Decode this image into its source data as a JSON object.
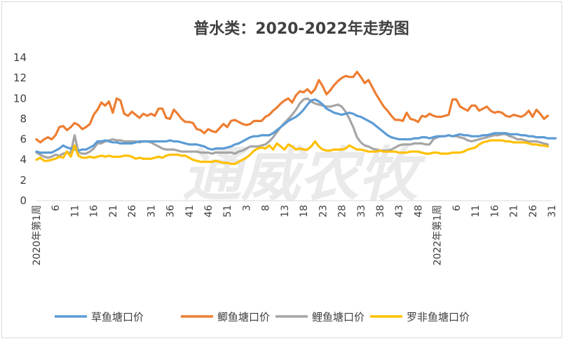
{
  "chart_data": {
    "type": "line",
    "title": "普水类：2020-2022年走势图",
    "watermark": "通威农牧",
    "x_tick_labels": [
      "2020年第1周",
      "6",
      "11",
      "16",
      "21",
      "26",
      "31",
      "36",
      "41",
      "46",
      "51",
      "3",
      "8",
      "13",
      "18",
      "23",
      "28",
      "33",
      "38",
      "43",
      "48",
      "2022年第1周",
      "6",
      "11",
      "16",
      "21",
      "26",
      "31"
    ],
    "ylim": [
      0,
      14
    ],
    "yticks": [
      0,
      2,
      4,
      6,
      8,
      10,
      12,
      14
    ],
    "grid": false,
    "legend_position": "bottom",
    "series": [
      {
        "name": "草鱼塘口价",
        "color": "#5B9BD5",
        "values": [
          4.8,
          4.7,
          4.7,
          4.7,
          4.7,
          4.9,
          5.1,
          5.4,
          5.2,
          5.1,
          5.0,
          4.9,
          5.0,
          5.0,
          5.2,
          5.4,
          5.8,
          5.8,
          5.9,
          5.8,
          5.7,
          5.7,
          5.6,
          5.6,
          5.6,
          5.6,
          5.7,
          5.8,
          5.8,
          5.8,
          5.8,
          5.8,
          5.8,
          5.8,
          5.8,
          5.9,
          5.8,
          5.8,
          5.7,
          5.6,
          5.5,
          5.5,
          5.5,
          5.4,
          5.3,
          5.1,
          5.0,
          5.1,
          5.1,
          5.1,
          5.2,
          5.3,
          5.5,
          5.6,
          5.8,
          6.0,
          6.2,
          6.3,
          6.3,
          6.4,
          6.4,
          6.4,
          6.6,
          6.9,
          7.2,
          7.5,
          7.8,
          8.0,
          8.2,
          8.5,
          8.9,
          9.4,
          9.8,
          9.9,
          9.7,
          9.4,
          9.0,
          8.8,
          8.6,
          8.5,
          8.4,
          8.5,
          8.6,
          8.5,
          8.3,
          8.2,
          8.0,
          7.8,
          7.6,
          7.3,
          7.0,
          6.7,
          6.4,
          6.2,
          6.1,
          6.0,
          6.0,
          6.0,
          6.0,
          6.1,
          6.1,
          6.2,
          6.2,
          6.1,
          6.2,
          6.3,
          6.3,
          6.3,
          6.4,
          6.3,
          6.4,
          6.5,
          6.4,
          6.4,
          6.3,
          6.3,
          6.3,
          6.4,
          6.4,
          6.5,
          6.6,
          6.6,
          6.6,
          6.6,
          6.5,
          6.5,
          6.5,
          6.4,
          6.4,
          6.3,
          6.3,
          6.2,
          6.2,
          6.2,
          6.1,
          6.1,
          6.1
        ]
      },
      {
        "name": "鲫鱼塘口价",
        "color": "#ED7D31",
        "values": [
          6.0,
          5.7,
          6.0,
          6.2,
          6.0,
          6.4,
          7.2,
          7.3,
          6.9,
          7.2,
          7.6,
          7.4,
          7.0,
          7.2,
          7.5,
          8.4,
          8.9,
          9.6,
          9.3,
          9.7,
          8.6,
          10.0,
          9.8,
          8.5,
          8.3,
          8.7,
          8.4,
          8.1,
          8.5,
          8.3,
          8.5,
          8.3,
          9.0,
          9.0,
          8.1,
          8.0,
          8.9,
          8.5,
          8.0,
          7.7,
          7.7,
          7.6,
          7.0,
          6.9,
          6.6,
          7.0,
          6.8,
          6.7,
          7.1,
          7.5,
          7.2,
          7.8,
          7.9,
          7.7,
          7.5,
          7.4,
          7.5,
          7.8,
          7.8,
          7.8,
          8.2,
          8.4,
          8.8,
          9.1,
          9.5,
          9.8,
          10.0,
          9.6,
          10.3,
          10.7,
          10.6,
          10.9,
          10.5,
          10.9,
          11.8,
          11.2,
          10.4,
          10.8,
          11.3,
          11.7,
          12.0,
          12.2,
          12.1,
          12.1,
          12.6,
          12.1,
          11.5,
          11.8,
          11.1,
          10.4,
          9.8,
          9.2,
          8.8,
          8.3,
          7.9,
          7.9,
          7.8,
          8.6,
          8.0,
          7.9,
          7.7,
          8.3,
          8.2,
          8.5,
          8.3,
          8.2,
          8.2,
          8.3,
          8.4,
          9.9,
          9.9,
          9.2,
          9.0,
          8.8,
          9.3,
          9.3,
          8.8,
          9.0,
          9.2,
          8.8,
          8.6,
          8.7,
          8.6,
          8.3,
          8.2,
          8.4,
          8.3,
          8.2,
          8.4,
          8.8,
          8.2,
          8.9,
          8.5,
          8.0,
          8.3
        ]
      },
      {
        "name": "鲤鱼塘口价",
        "color": "#A5A5A5",
        "values": [
          4.7,
          4.5,
          4.3,
          4.2,
          4.3,
          4.5,
          4.4,
          4.6,
          4.7,
          4.7,
          6.4,
          4.7,
          4.6,
          4.6,
          4.8,
          5.1,
          5.6,
          5.6,
          5.8,
          5.9,
          6.0,
          5.9,
          5.9,
          5.8,
          5.8,
          5.8,
          5.8,
          5.7,
          5.8,
          5.8,
          5.7,
          5.5,
          5.3,
          5.1,
          5.0,
          5.0,
          5.0,
          4.9,
          4.8,
          4.8,
          4.8,
          4.8,
          4.8,
          4.7,
          4.7,
          4.7,
          4.6,
          4.7,
          4.7,
          4.7,
          4.7,
          4.7,
          4.6,
          4.8,
          4.9,
          5.1,
          5.3,
          5.3,
          5.3,
          5.4,
          5.5,
          5.8,
          6.2,
          6.7,
          7.2,
          7.6,
          8.0,
          8.4,
          8.9,
          9.5,
          9.9,
          10.0,
          9.7,
          9.5,
          9.4,
          9.3,
          9.2,
          9.2,
          9.3,
          9.4,
          9.2,
          8.7,
          8.0,
          7.2,
          6.2,
          5.7,
          5.4,
          5.3,
          5.1,
          5.0,
          4.9,
          4.9,
          4.9,
          5.0,
          5.2,
          5.4,
          5.5,
          5.5,
          5.5,
          5.6,
          5.6,
          5.6,
          5.5,
          5.5,
          6.0,
          6.2,
          6.3,
          6.3,
          6.4,
          6.3,
          6.3,
          6.2,
          6.1,
          5.9,
          5.8,
          5.9,
          6.0,
          6.1,
          6.2,
          6.3,
          6.4,
          6.4,
          6.5,
          6.5,
          6.3,
          6.2,
          6.0,
          6.0,
          5.9,
          5.8,
          5.8,
          5.8,
          5.7,
          5.6,
          5.5
        ]
      },
      {
        "name": "罗非鱼塘口价",
        "color": "#FFC000",
        "values": [
          4.0,
          4.2,
          3.9,
          3.9,
          4.0,
          4.1,
          4.3,
          4.2,
          4.8,
          4.3,
          5.4,
          4.4,
          4.2,
          4.2,
          4.3,
          4.2,
          4.3,
          4.4,
          4.3,
          4.4,
          4.3,
          4.3,
          4.3,
          4.4,
          4.4,
          4.3,
          4.1,
          4.2,
          4.1,
          4.1,
          4.1,
          4.2,
          4.3,
          4.2,
          4.4,
          4.5,
          4.5,
          4.5,
          4.4,
          4.4,
          4.2,
          4.0,
          3.9,
          3.8,
          3.8,
          3.8,
          3.8,
          3.9,
          3.8,
          3.7,
          3.7,
          3.6,
          3.6,
          3.8,
          4.0,
          4.2,
          4.5,
          4.9,
          5.1,
          5.2,
          5.1,
          5.4,
          5.0,
          5.6,
          5.3,
          5.0,
          5.5,
          5.3,
          5.0,
          5.1,
          5.0,
          5.0,
          5.3,
          5.8,
          5.3,
          5.0,
          4.9,
          4.9,
          5.0,
          5.0,
          5.0,
          5.1,
          5.4,
          5.2,
          5.0,
          5.0,
          4.9,
          4.8,
          4.8,
          4.8,
          4.9,
          4.8,
          4.8,
          4.8,
          4.8,
          4.7,
          4.7,
          4.7,
          4.8,
          4.8,
          4.8,
          4.7,
          4.6,
          4.6,
          4.7,
          4.7,
          4.6,
          4.6,
          4.6,
          4.7,
          4.7,
          4.7,
          4.8,
          5.0,
          5.1,
          5.2,
          5.5,
          5.7,
          5.8,
          5.9,
          5.9,
          5.9,
          5.9,
          5.8,
          5.8,
          5.7,
          5.7,
          5.7,
          5.7,
          5.6,
          5.5,
          5.5,
          5.4,
          5.4,
          5.3
        ]
      }
    ]
  }
}
